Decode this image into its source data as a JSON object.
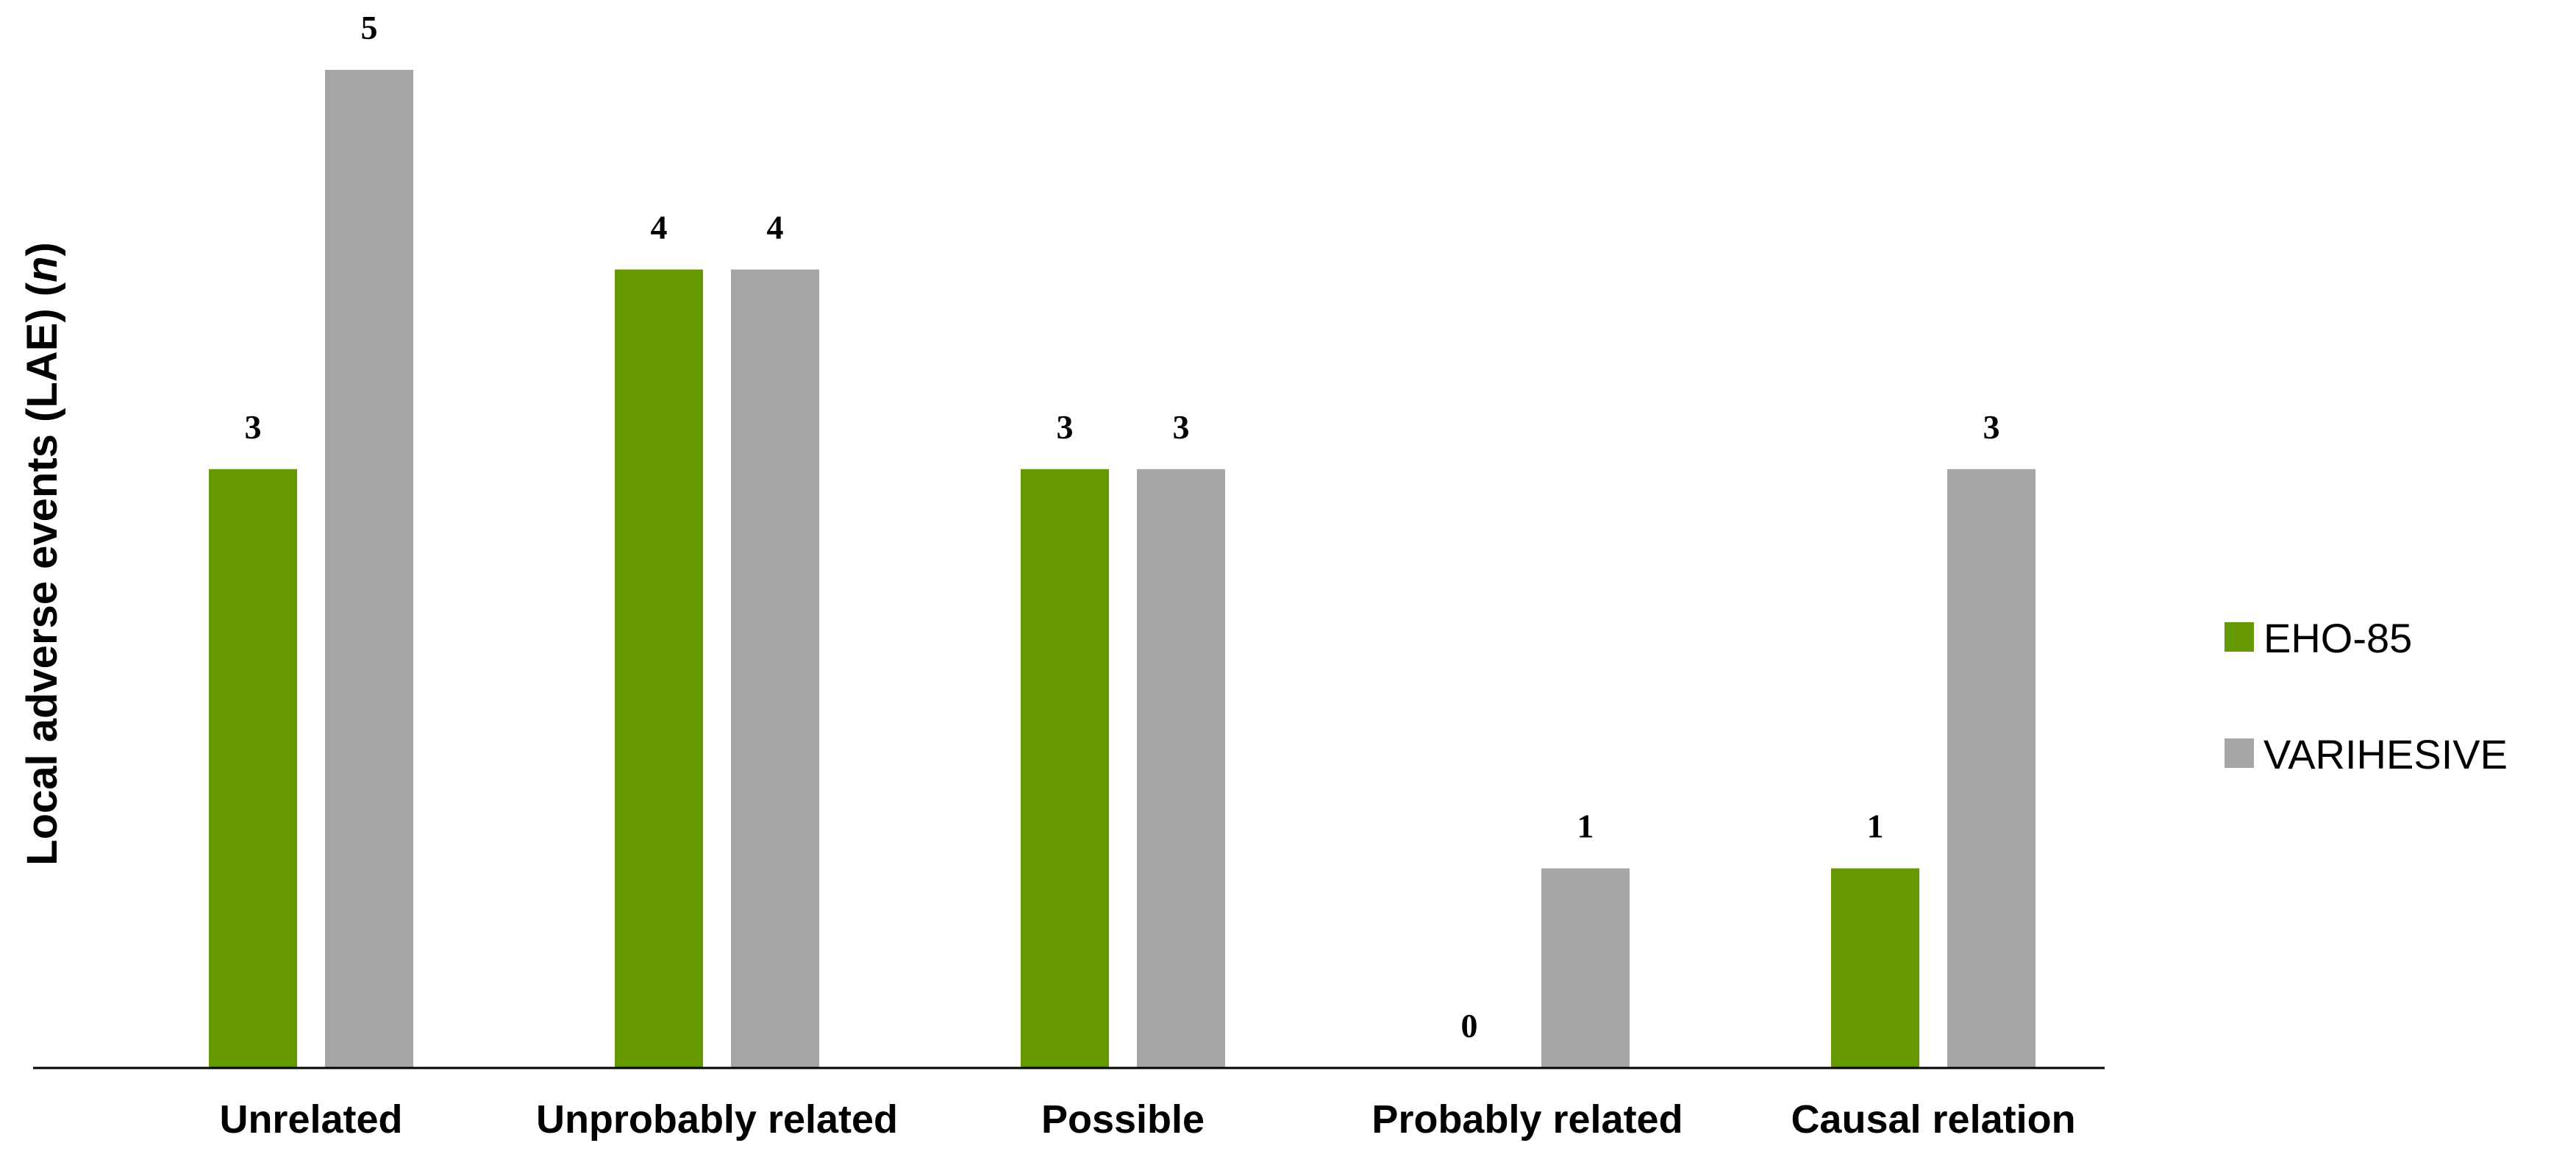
{
  "chart_data": {
    "type": "bar",
    "title": "",
    "xlabel": "",
    "ylabel": "Local adverse events (LAE) (n)",
    "ylabel_parts": {
      "text": "Local adverse events (LAE) (",
      "italic": "n",
      "close": ")"
    },
    "categories": [
      "Unrelated",
      "Unprobably related",
      "Possible",
      "Probably related",
      "Causal relation"
    ],
    "series": [
      {
        "name": "EHO-85",
        "values": [
          3,
          4,
          3,
          0,
          1
        ],
        "color": "#669900"
      },
      {
        "name": "VARIHESIVE",
        "values": [
          5,
          4,
          3,
          1,
          3
        ],
        "color": "#a6a6a6"
      }
    ],
    "ylim": [
      0,
      5
    ],
    "grid": false,
    "legend": "right",
    "data_labels": true
  }
}
